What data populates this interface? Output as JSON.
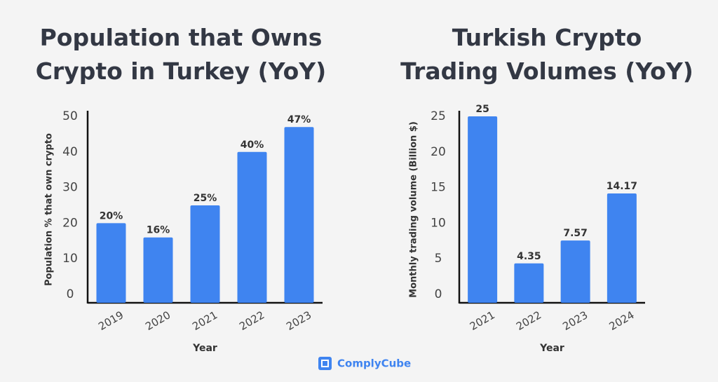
{
  "chart_data": [
    {
      "type": "bar",
      "title": "Population that Owns Crypto in Turkey (YoY)",
      "x_label": "Year",
      "y_label": "Population % that own crypto",
      "categories": [
        "2019",
        "2020",
        "2021",
        "2022",
        "2023"
      ],
      "values": [
        20,
        16,
        25,
        40,
        47
      ],
      "value_labels": [
        "20%",
        "16%",
        "25%",
        "40%",
        "47%"
      ],
      "color": "#3f84f0",
      "ylim": [
        0,
        50
      ],
      "yticks": [
        0,
        10,
        20,
        30,
        40,
        50
      ],
      "grid": false
    },
    {
      "type": "bar",
      "title": "Turkish Crypto Trading Volumes (YoY)",
      "x_label": "Year",
      "y_label": "Monthly trading volume (Billion $)",
      "categories": [
        "2021",
        "2022",
        "2023",
        "2024"
      ],
      "values": [
        25,
        4.35,
        7.57,
        14.17
      ],
      "color": "#3f84f0",
      "ylim": [
        0,
        25
      ],
      "yticks": [
        0,
        5,
        10,
        15,
        20,
        25
      ],
      "grid": false
    }
  ],
  "brand": "ComplyCube"
}
